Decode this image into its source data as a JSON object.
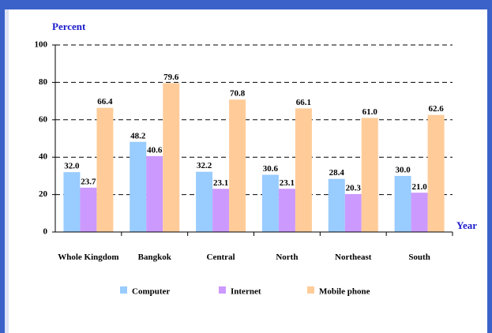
{
  "chart_data": {
    "type": "bar",
    "y_label": "Percent",
    "x_label": "Year",
    "categories": [
      "Whole Kingdom",
      "Bangkok",
      "Central",
      "North",
      "Northeast",
      "South"
    ],
    "series": [
      {
        "name": "Computer",
        "color": "#99ccff",
        "values": [
          32.0,
          48.2,
          32.2,
          30.6,
          28.4,
          30.0
        ],
        "value_labels": [
          "32.0",
          "48.2",
          "32.2",
          "30.6",
          "28.4",
          "30.0"
        ]
      },
      {
        "name": "Internet",
        "color": "#cc99ff",
        "values": [
          23.7,
          40.6,
          23.1,
          23.1,
          20.3,
          21.0
        ],
        "value_labels": [
          "23.7",
          "40.6",
          "23.1",
          "23.1",
          "20.3",
          "21.0"
        ]
      },
      {
        "name": "Mobile phone",
        "color": "#ffcc99",
        "values": [
          66.4,
          79.6,
          70.8,
          66.1,
          61.0,
          62.6
        ],
        "value_labels": [
          "66.4",
          "79.6",
          "70.8",
          "66.1",
          "61.0",
          "62.6"
        ]
      }
    ],
    "ylim": [
      0,
      100
    ],
    "yticks": [
      0,
      20,
      40,
      60,
      80,
      100
    ],
    "grid": true,
    "legend": "bottom"
  }
}
